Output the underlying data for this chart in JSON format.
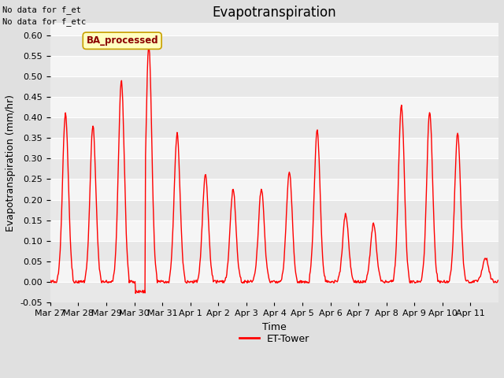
{
  "title": "Evapotranspiration",
  "ylabel": "Evapotranspiration (mm/hr)",
  "xlabel": "Time",
  "ylim": [
    -0.05,
    0.63
  ],
  "yticks": [
    -0.05,
    0.0,
    0.05,
    0.1,
    0.15,
    0.2,
    0.25,
    0.3,
    0.35,
    0.4,
    0.45,
    0.5,
    0.55,
    0.6
  ],
  "line_color": "#ff0000",
  "line_width": 1.0,
  "bg_color": "#e0e0e0",
  "plot_bg_color": "#f5f5f5",
  "band_color_light": "#f5f5f5",
  "band_color_dark": "#e8e8e8",
  "legend_label": "ET-Tower",
  "ba_processed_text": "BA_processed",
  "no_data_text1": "No data for f_et",
  "no_data_text2": "No data for f_etc",
  "xtick_labels": [
    "Mar 27",
    "Mar 28",
    "Mar 29",
    "Mar 30",
    "Mar 31",
    "Apr 1",
    "Apr 2",
    "Apr 3",
    "Apr 4",
    "Apr 5",
    "Apr 6",
    "Apr 7",
    "Apr 8",
    "Apr 9",
    "Apr 10",
    "Apr 11"
  ],
  "daily_peaks": [
    0.41,
    0.38,
    0.49,
    0.575,
    0.36,
    0.26,
    0.225,
    0.225,
    0.27,
    0.37,
    0.165,
    0.14,
    0.43,
    0.415,
    0.36,
    0.06
  ],
  "title_fontsize": 12,
  "axis_fontsize": 9,
  "tick_fontsize": 8
}
